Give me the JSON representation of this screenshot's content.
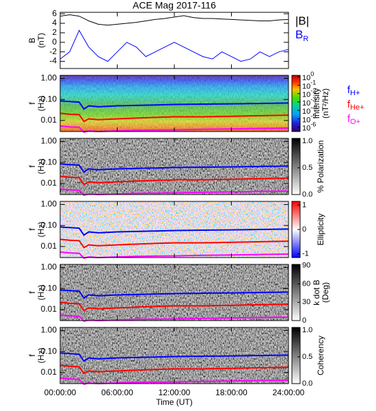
{
  "chart_data": [
    {
      "type": "line",
      "title": "ACE Mag 2017-116",
      "ylabel": "B",
      "ylabel_unit": "(nT)",
      "xlim": [
        0,
        24
      ],
      "xticks": [
        0,
        6,
        12,
        18,
        24
      ],
      "ylim": [
        -5.5,
        6.3
      ],
      "yticks": [
        -4,
        -2,
        0,
        2,
        4,
        6
      ],
      "x": [
        0,
        1,
        2,
        3,
        4,
        5,
        6,
        7,
        8,
        9,
        10,
        11,
        12,
        13,
        14,
        15,
        16,
        17,
        18,
        19,
        20,
        21,
        22,
        23,
        24
      ],
      "series": [
        {
          "name": "|B|",
          "color": "#000000",
          "values": [
            5.5,
            5.8,
            5.5,
            4.5,
            3.8,
            3.6,
            3.8,
            4.0,
            4.2,
            4.5,
            4.8,
            5.0,
            5.3,
            5.6,
            5.2,
            5.0,
            5.0,
            4.9,
            4.8,
            4.7,
            4.6,
            4.5,
            4.5,
            4.7,
            4.8
          ]
        },
        {
          "name": "B",
          "subscript": "R",
          "color": "#0000ff",
          "values": [
            -3.5,
            -2,
            2.5,
            -1,
            -3,
            -4,
            -2,
            0,
            -1,
            -3,
            -2,
            -1,
            0,
            -1,
            -2,
            -3,
            -3.5,
            -2,
            -3,
            -4,
            -3.5,
            -2,
            -3,
            -2,
            -1.5
          ]
        }
      ]
    },
    {
      "type": "spectrogram",
      "ylabel": "f",
      "ylabel_unit": "(Hz)",
      "yscale": "log",
      "legend": true,
      "ylim": [
        0.003,
        1.4
      ],
      "yticks": [
        {
          "value": 1,
          "label": "1.00"
        },
        {
          "value": 0.1,
          "label": "0.10"
        },
        0.01
      ],
      "xlim": [
        0,
        24
      ],
      "xticks": [
        0,
        6,
        12,
        18,
        24
      ],
      "x": [
        0,
        1,
        2,
        2.5,
        3,
        4,
        6,
        8,
        10,
        12,
        15,
        18,
        21,
        24
      ],
      "series": [
        {
          "name": "f",
          "subscript": "H+",
          "color": "#0000ff",
          "values": [
            0.085,
            0.08,
            0.075,
            0.035,
            0.05,
            0.045,
            0.05,
            0.052,
            0.055,
            0.058,
            0.06,
            0.062,
            0.065,
            0.068
          ]
        },
        {
          "name": "f",
          "subscript": "He+",
          "color": "#ff0000",
          "values": [
            0.022,
            0.02,
            0.019,
            0.009,
            0.012,
            0.011,
            0.012,
            0.013,
            0.014,
            0.015,
            0.015,
            0.016,
            0.017,
            0.018
          ]
        },
        {
          "name": "f",
          "subscript": "O+",
          "color": "#ff00ff",
          "values": [
            0.0055,
            0.005,
            0.0048,
            0.0028,
            0.0032,
            0.003,
            0.0032,
            0.0034,
            0.0035,
            0.0036,
            0.0038,
            0.004,
            0.0042,
            0.0044
          ]
        }
      ],
      "colorbar": {
        "label": [
          "Intensity",
          "(nT²/Hz)"
        ],
        "colormap": "rainbow",
        "scale": "log",
        "lim": [
          3e-07,
          1.5
        ],
        "ticks": [
          {
            "value": 1,
            "label": "10",
            "exponent": "0"
          },
          {
            "value": 0.1,
            "label": "10",
            "exponent": "-1"
          },
          {
            "value": 0.01,
            "label": "10",
            "exponent": "-2"
          },
          {
            "value": 0.001,
            "label": "10",
            "exponent": "-3"
          },
          {
            "value": 0.0001,
            "label": "10",
            "exponent": "-4"
          },
          {
            "value": 1e-05,
            "label": "10",
            "exponent": "-5"
          },
          {
            "value": 1e-06,
            "label": "10",
            "exponent": "-6"
          }
        ]
      }
    },
    {
      "type": "spectrogram",
      "ylabel": "f",
      "ylabel_unit": "(Hz)",
      "yscale": "log",
      "legend": false,
      "ylim": [
        0.003,
        1.4
      ],
      "yticks": [
        {
          "value": 1,
          "label": "1.00"
        },
        {
          "value": 0.1,
          "label": "0.10"
        },
        0.01
      ],
      "xlim": [
        0,
        24
      ],
      "xticks": [
        0,
        6,
        12,
        18,
        24
      ],
      "x": [
        0,
        1,
        2,
        2.5,
        3,
        4,
        6,
        8,
        10,
        12,
        15,
        18,
        21,
        24
      ],
      "series": [
        {
          "name": "f",
          "subscript": "H+",
          "color": "#0000ff",
          "values": [
            0.085,
            0.08,
            0.075,
            0.035,
            0.05,
            0.045,
            0.05,
            0.052,
            0.055,
            0.058,
            0.06,
            0.062,
            0.065,
            0.068
          ]
        },
        {
          "name": "f",
          "subscript": "He+",
          "color": "#ff0000",
          "values": [
            0.022,
            0.02,
            0.019,
            0.009,
            0.012,
            0.011,
            0.012,
            0.013,
            0.014,
            0.015,
            0.015,
            0.016,
            0.017,
            0.018
          ]
        },
        {
          "name": "f",
          "subscript": "O+",
          "color": "#ff00ff",
          "values": [
            0.0055,
            0.005,
            0.0048,
            0.0028,
            0.0032,
            0.003,
            0.0032,
            0.0034,
            0.0035,
            0.0036,
            0.0038,
            0.004,
            0.0042,
            0.0044
          ]
        }
      ],
      "colorbar": {
        "label": [
          "% Polarization"
        ],
        "colormap": "gray",
        "scale": "linear",
        "lim": [
          0,
          1.05
        ],
        "ticks": [
          {
            "value": 0,
            "label": "0.0"
          },
          0.5,
          {
            "value": 1,
            "label": "1.0"
          }
        ]
      }
    },
    {
      "type": "spectrogram",
      "ylabel": "f",
      "ylabel_unit": "(Hz)",
      "yscale": "log",
      "legend": false,
      "ylim": [
        0.003,
        1.4
      ],
      "yticks": [
        {
          "value": 1,
          "label": "1.00"
        },
        {
          "value": 0.1,
          "label": "0.10"
        },
        0.01
      ],
      "xlim": [
        0,
        24
      ],
      "xticks": [
        0,
        6,
        12,
        18,
        24
      ],
      "x": [
        0,
        1,
        2,
        2.5,
        3,
        4,
        6,
        8,
        10,
        12,
        15,
        18,
        21,
        24
      ],
      "series": [
        {
          "name": "f",
          "subscript": "H+",
          "color": "#0000ff",
          "values": [
            0.085,
            0.08,
            0.075,
            0.035,
            0.05,
            0.045,
            0.05,
            0.052,
            0.055,
            0.058,
            0.06,
            0.062,
            0.065,
            0.068
          ]
        },
        {
          "name": "f",
          "subscript": "He+",
          "color": "#ff0000",
          "values": [
            0.022,
            0.02,
            0.019,
            0.009,
            0.012,
            0.011,
            0.012,
            0.013,
            0.014,
            0.015,
            0.015,
            0.016,
            0.017,
            0.018
          ]
        },
        {
          "name": "f",
          "subscript": "O+",
          "color": "#ff00ff",
          "values": [
            0.0055,
            0.005,
            0.0048,
            0.0028,
            0.0032,
            0.003,
            0.0032,
            0.0034,
            0.0035,
            0.0036,
            0.0038,
            0.004,
            0.0042,
            0.0044
          ]
        }
      ],
      "colorbar": {
        "label": [
          "Ellipticity"
        ],
        "colormap": "bwr",
        "scale": "linear",
        "lim": [
          -1.15,
          1.15
        ],
        "ticks": [
          -1,
          0,
          1
        ]
      }
    },
    {
      "type": "spectrogram",
      "ylabel": "f",
      "ylabel_unit": "(Hz)",
      "yscale": "log",
      "legend": false,
      "ylim": [
        0.003,
        1.4
      ],
      "yticks": [
        {
          "value": 1,
          "label": "1.00"
        },
        {
          "value": 0.1,
          "label": "0.10"
        },
        0.01
      ],
      "xlim": [
        0,
        24
      ],
      "xticks": [
        0,
        6,
        12,
        18,
        24
      ],
      "x": [
        0,
        1,
        2,
        2.5,
        3,
        4,
        6,
        8,
        10,
        12,
        15,
        18,
        21,
        24
      ],
      "series": [
        {
          "name": "f",
          "subscript": "H+",
          "color": "#0000ff",
          "values": [
            0.085,
            0.08,
            0.075,
            0.035,
            0.05,
            0.045,
            0.05,
            0.052,
            0.055,
            0.058,
            0.06,
            0.062,
            0.065,
            0.068
          ]
        },
        {
          "name": "f",
          "subscript": "He+",
          "color": "#ff0000",
          "values": [
            0.022,
            0.02,
            0.019,
            0.009,
            0.012,
            0.011,
            0.012,
            0.013,
            0.014,
            0.015,
            0.015,
            0.016,
            0.017,
            0.018
          ]
        },
        {
          "name": "f",
          "subscript": "O+",
          "color": "#ff00ff",
          "values": [
            0.0055,
            0.005,
            0.0048,
            0.0028,
            0.0032,
            0.003,
            0.0032,
            0.0034,
            0.0035,
            0.0036,
            0.0038,
            0.004,
            0.0042,
            0.0044
          ]
        }
      ],
      "colorbar": {
        "label": [
          "k dot B",
          "(Deg)"
        ],
        "colormap": "gray",
        "scale": "linear",
        "lim": [
          0,
          92
        ],
        "ticks": [
          0,
          30,
          60,
          90
        ]
      }
    },
    {
      "type": "spectrogram",
      "ylabel": "f",
      "ylabel_unit": "(Hz)",
      "yscale": "log",
      "legend": false,
      "ylim": [
        0.003,
        1.4
      ],
      "yticks": [
        {
          "value": 1,
          "label": "1.00"
        },
        {
          "value": 0.1,
          "label": "0.10"
        },
        0.01
      ],
      "xlim": [
        0,
        24
      ],
      "xlabel": "Time (UT)",
      "xticks": [
        {
          "value": 0,
          "label": "00:00:00"
        },
        {
          "value": 6,
          "label": "06:00:00"
        },
        {
          "value": 12,
          "label": "12:00:00"
        },
        {
          "value": 18,
          "label": "18:00:00"
        },
        {
          "value": 24,
          "label": "24:00:00"
        }
      ],
      "x": [
        0,
        1,
        2,
        2.5,
        3,
        4,
        6,
        8,
        10,
        12,
        15,
        18,
        21,
        24
      ],
      "series": [
        {
          "name": "f",
          "subscript": "H+",
          "color": "#0000ff",
          "values": [
            0.085,
            0.08,
            0.075,
            0.035,
            0.05,
            0.045,
            0.05,
            0.052,
            0.055,
            0.058,
            0.06,
            0.062,
            0.065,
            0.068
          ]
        },
        {
          "name": "f",
          "subscript": "He+",
          "color": "#ff0000",
          "values": [
            0.022,
            0.02,
            0.019,
            0.009,
            0.012,
            0.011,
            0.012,
            0.013,
            0.014,
            0.015,
            0.015,
            0.016,
            0.017,
            0.018
          ]
        },
        {
          "name": "f",
          "subscript": "O+",
          "color": "#ff00ff",
          "values": [
            0.0055,
            0.005,
            0.0048,
            0.0028,
            0.0032,
            0.003,
            0.0032,
            0.0034,
            0.0035,
            0.0036,
            0.0038,
            0.004,
            0.0042,
            0.0044
          ]
        }
      ],
      "colorbar": {
        "label": [
          "Coherency"
        ],
        "colormap": "gray",
        "scale": "linear",
        "lim": [
          0,
          1.05
        ],
        "ticks": [
          {
            "value": 0,
            "label": "0.0"
          },
          0.5,
          {
            "value": 1,
            "label": "1.0"
          }
        ]
      }
    }
  ]
}
